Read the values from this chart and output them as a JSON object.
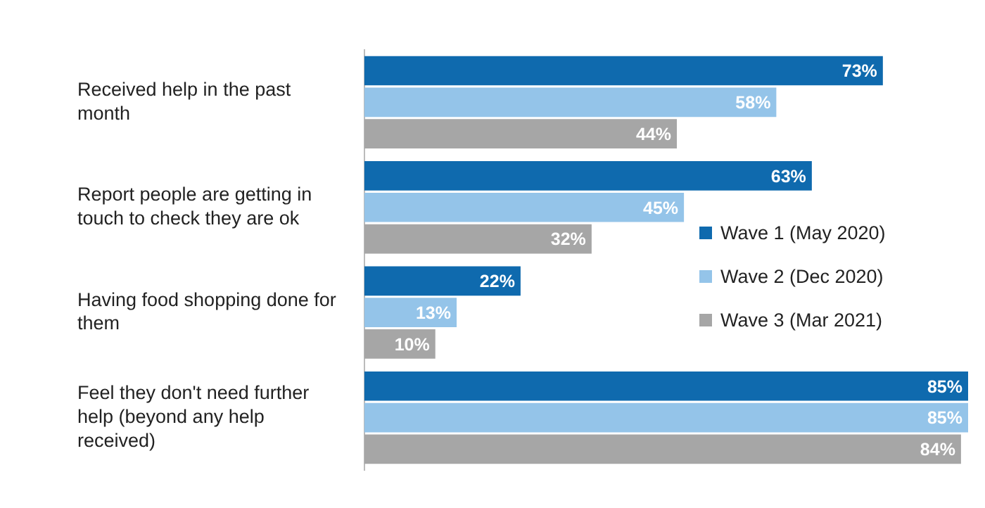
{
  "chart_data": {
    "type": "bar",
    "orientation": "horizontal",
    "categories": [
      "Received help in the past month",
      "Report people are getting in touch to check they are ok",
      "Having food shopping done for them",
      "Feel they don't need further help (beyond any help received)"
    ],
    "series": [
      {
        "name": "Wave 1 (May 2020)",
        "color": "#0f6aae",
        "values": [
          73,
          63,
          22,
          85
        ],
        "value_labels": [
          "73%",
          "63%",
          "22%",
          "85%"
        ]
      },
      {
        "name": "Wave 2 (Dec 2020)",
        "color": "#94c4e9",
        "values": [
          58,
          45,
          13,
          85
        ],
        "value_labels": [
          "58%",
          "45%",
          "13%",
          "85%"
        ]
      },
      {
        "name": "Wave 3 (Mar 2021)",
        "color": "#a6a6a6",
        "values": [
          44,
          32,
          10,
          84
        ],
        "value_labels": [
          "44%",
          "32%",
          "10%",
          "84%"
        ]
      }
    ],
    "grid": false,
    "legend": "right"
  }
}
